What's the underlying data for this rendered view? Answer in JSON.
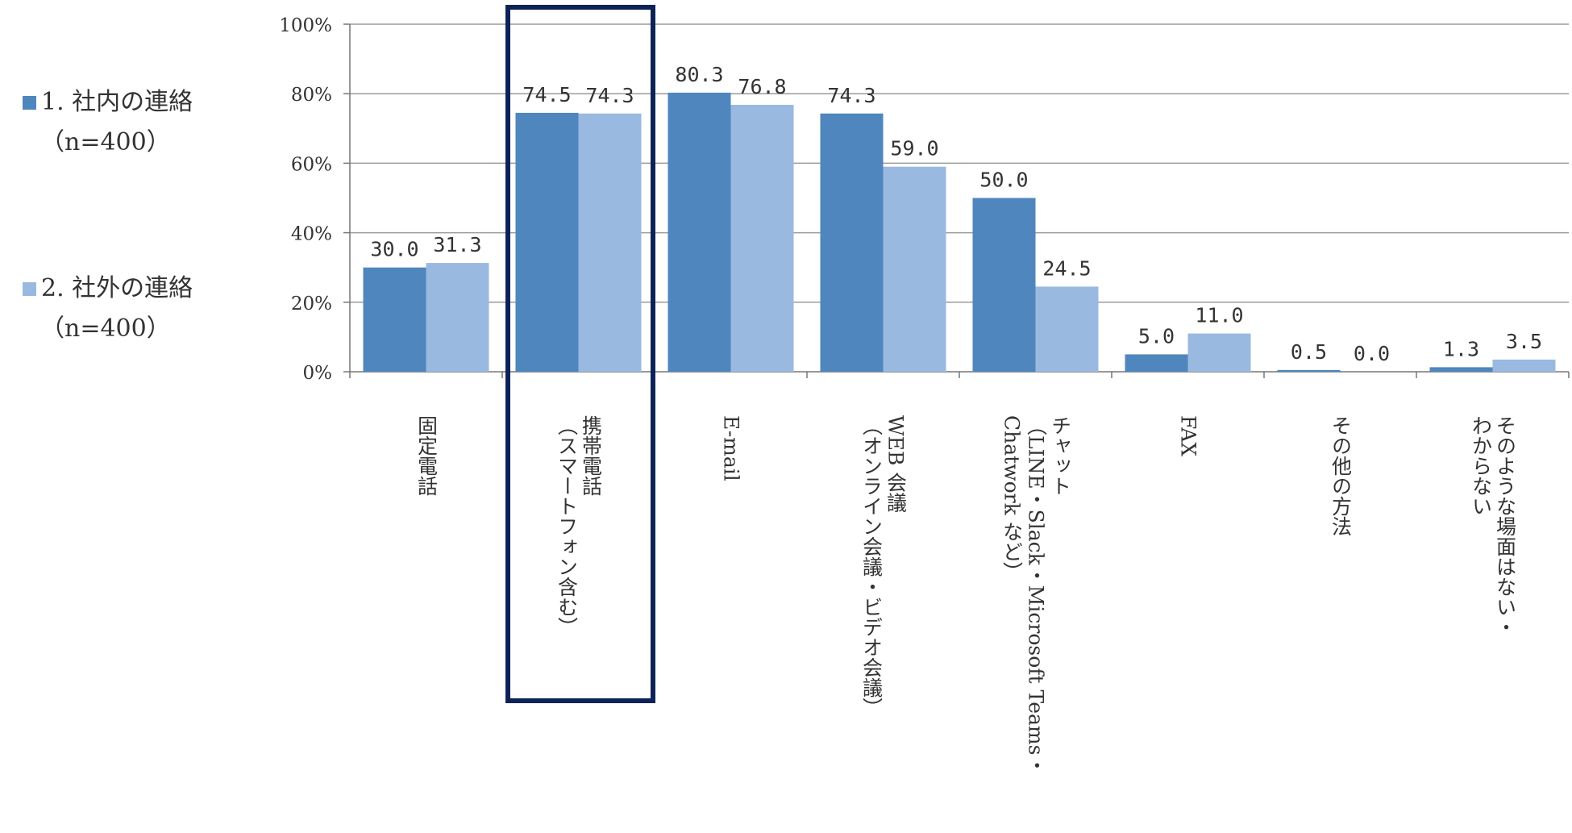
{
  "chart_data": {
    "type": "bar",
    "title": "",
    "xlabel": "",
    "ylabel": "",
    "ylim": [
      0,
      100
    ],
    "yticks": [
      "0%",
      "20%",
      "40%",
      "60%",
      "80%",
      "100%"
    ],
    "grid": true,
    "legend_position": "left",
    "highlighted_category_index": 1,
    "categories": [
      [
        "固定電話"
      ],
      [
        "携帯電話",
        "（スマートフォン含む）"
      ],
      [
        "E-mail"
      ],
      [
        "WEB 会議",
        "（オンライン会議・ビデオ会議）"
      ],
      [
        "チャット",
        "（LINE・Slack・Microsoft Teams・",
        "Chatwork など）"
      ],
      [
        "FAX"
      ],
      [
        "その他の方法"
      ],
      [
        "そのような場面はない・",
        "わからない"
      ]
    ],
    "series": [
      {
        "name": "1. 社内の連絡",
        "n_label": "（n=400）",
        "color": "#4f86bd",
        "values": [
          30.0,
          74.5,
          80.3,
          74.3,
          50.0,
          5.0,
          0.5,
          1.3
        ],
        "labels": [
          "30.0",
          "74.5",
          "80.3",
          "74.3",
          "50.0",
          "5.0",
          "0.5",
          "1.3"
        ]
      },
      {
        "name": "2. 社外の連絡",
        "n_label": "（n=400）",
        "color": "#99b9e0",
        "values": [
          31.3,
          74.3,
          76.8,
          59.0,
          24.5,
          11.0,
          0.0,
          3.5
        ],
        "labels": [
          "31.3",
          "74.3",
          "76.8",
          "59.0",
          "24.5",
          "11.0",
          "0.0",
          "3.5"
        ]
      }
    ]
  }
}
